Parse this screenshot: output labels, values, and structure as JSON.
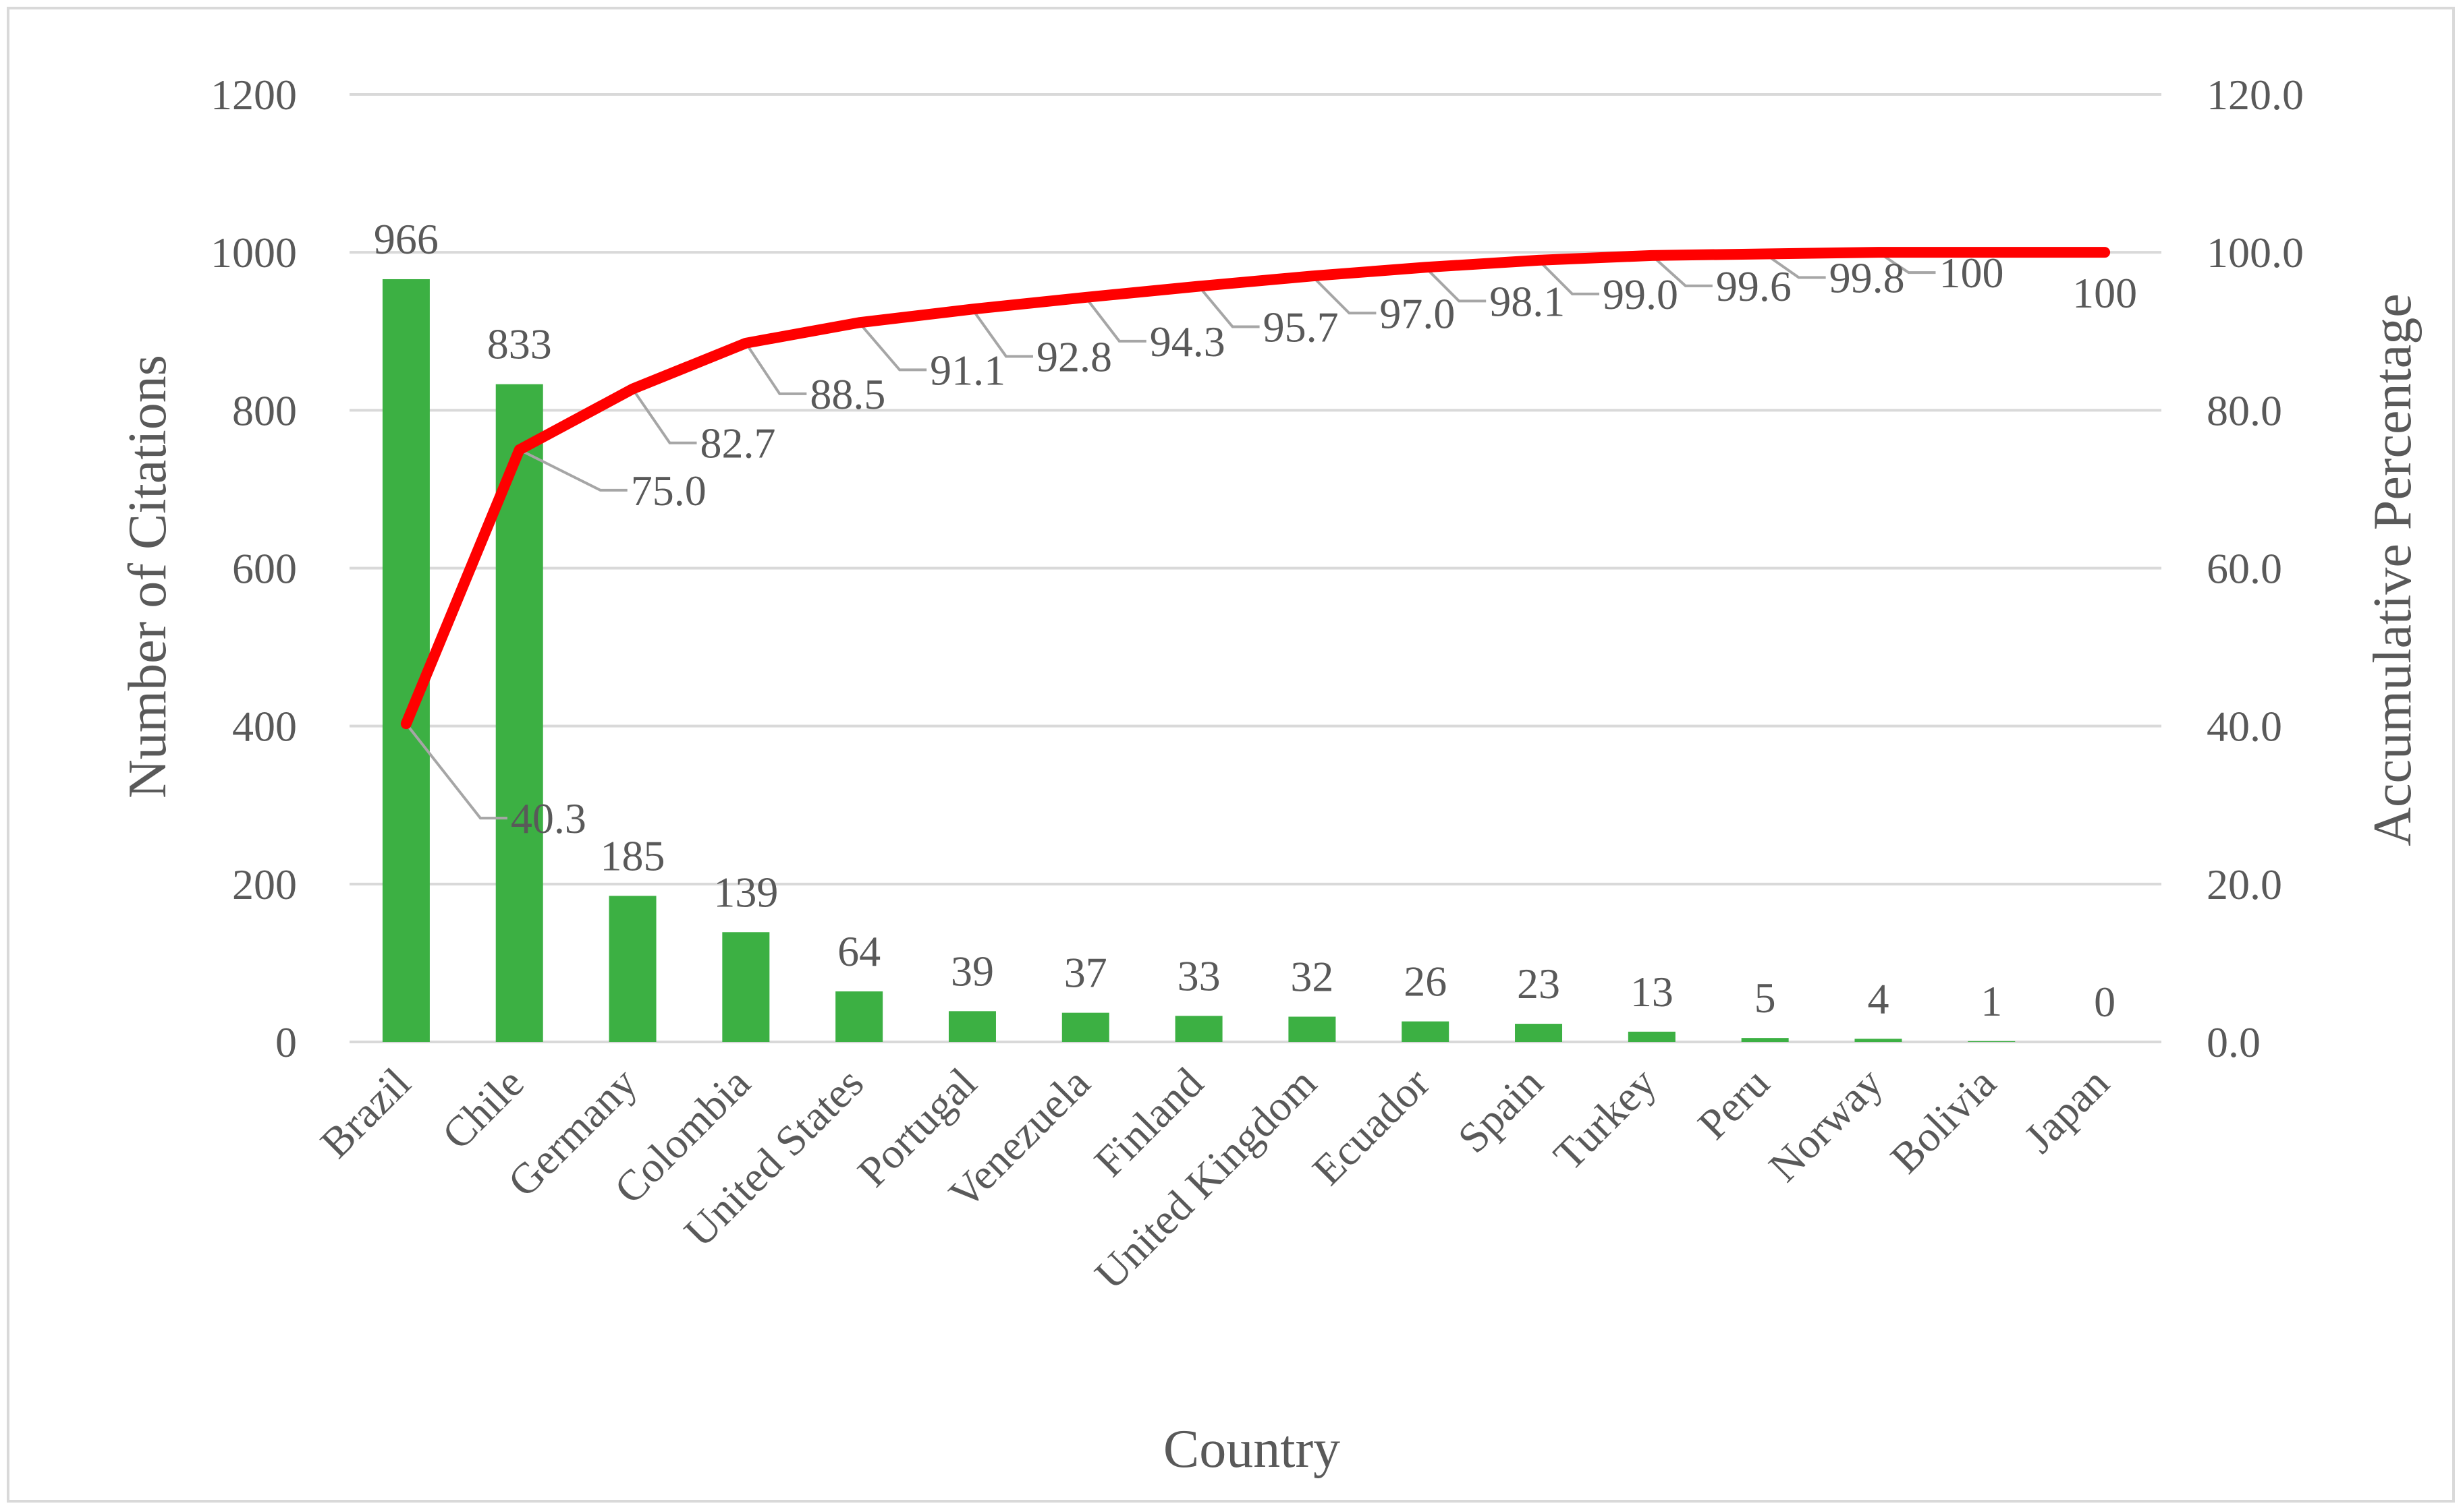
{
  "chart_data": {
    "type": "bar",
    "xlabel": "Country",
    "ylabel": "Number of Citations",
    "y2label": "Accumulative Percentage",
    "ylim": [
      0,
      1200
    ],
    "y2lim": [
      0,
      120
    ],
    "yticks": [
      "0",
      "200",
      "400",
      "600",
      "800",
      "1000",
      "1200"
    ],
    "y2ticks": [
      "0.0",
      "20.0",
      "40.0",
      "60.0",
      "80.0",
      "100.0",
      "120.0"
    ],
    "grid": true,
    "categories": [
      "Brazil",
      "Chile",
      "Germany",
      "Colombia",
      "United States",
      "Portugal",
      "Venezuela",
      "Finland",
      "United Kingdom",
      "Ecuador",
      "Spain",
      "Turkey",
      "Peru",
      "Norway",
      "Bolivia",
      "Japan"
    ],
    "series": [
      {
        "type": "bar",
        "axis": "left",
        "color": "#3cb043",
        "values": [
          966,
          833,
          185,
          139,
          64,
          39,
          37,
          33,
          32,
          26,
          23,
          13,
          5,
          4,
          1,
          0
        ],
        "labels": [
          "966",
          "833",
          "185",
          "139",
          "64",
          "39",
          "37",
          "33",
          "32",
          "26",
          "23",
          "13",
          "5",
          "4",
          "1",
          "0"
        ]
      },
      {
        "type": "line",
        "axis": "right",
        "color": "#ff0000",
        "values": [
          40.3,
          75.0,
          82.7,
          88.5,
          91.1,
          92.8,
          94.3,
          95.7,
          97.0,
          98.1,
          99.0,
          99.6,
          99.8,
          100,
          100,
          100
        ],
        "labels": [
          "40.3",
          "75.0",
          "82.7",
          "88.5",
          "91.1",
          "92.8",
          "94.3",
          "95.7",
          "97.0",
          "98.1",
          "99.0",
          "99.6",
          "99.8",
          "100",
          "",
          "100"
        ]
      }
    ]
  }
}
